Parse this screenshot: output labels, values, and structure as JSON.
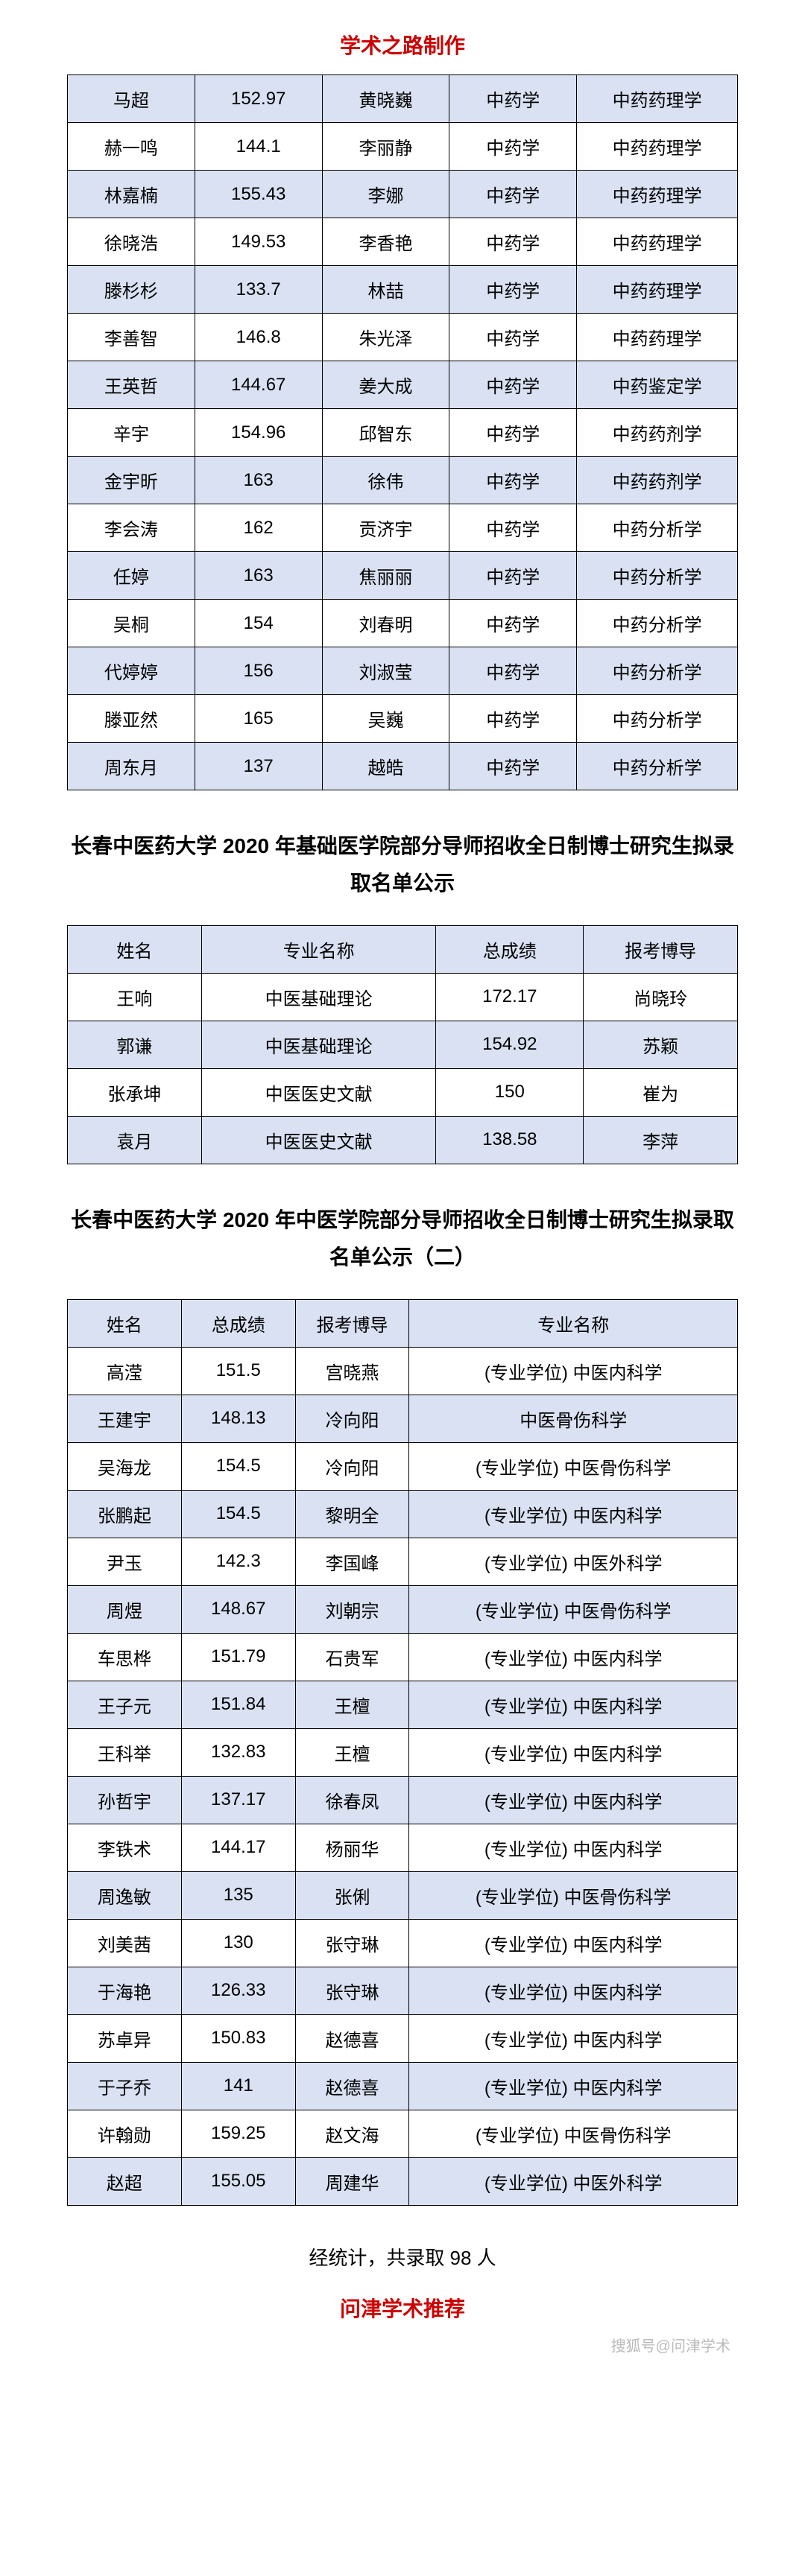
{
  "header_title": "学术之路制作",
  "table1": {
    "rows": [
      [
        "马超",
        "152.97",
        "黄晓巍",
        "中药学",
        "中药药理学"
      ],
      [
        "赫一鸣",
        "144.1",
        "李丽静",
        "中药学",
        "中药药理学"
      ],
      [
        "林嘉楠",
        "155.43",
        "李娜",
        "中药学",
        "中药药理学"
      ],
      [
        "徐晓浩",
        "149.53",
        "李香艳",
        "中药学",
        "中药药理学"
      ],
      [
        "滕杉杉",
        "133.7",
        "林喆",
        "中药学",
        "中药药理学"
      ],
      [
        "李善智",
        "146.8",
        "朱光泽",
        "中药学",
        "中药药理学"
      ],
      [
        "王英哲",
        "144.67",
        "姜大成",
        "中药学",
        "中药鉴定学"
      ],
      [
        "辛宇",
        "154.96",
        "邱智东",
        "中药学",
        "中药药剂学"
      ],
      [
        "金宇昕",
        "163",
        "徐伟",
        "中药学",
        "中药药剂学"
      ],
      [
        "李会涛",
        "162",
        "贡济宇",
        "中药学",
        "中药分析学"
      ],
      [
        "任婷",
        "163",
        "焦丽丽",
        "中药学",
        "中药分析学"
      ],
      [
        "吴桐",
        "154",
        "刘春明",
        "中药学",
        "中药分析学"
      ],
      [
        "代婷婷",
        "156",
        "刘淑莹",
        "中药学",
        "中药分析学"
      ],
      [
        "滕亚然",
        "165",
        "吴巍",
        "中药学",
        "中药分析学"
      ],
      [
        "周东月",
        "137",
        "越皓",
        "中药学",
        "中药分析学"
      ]
    ]
  },
  "section2_title": "长春中医药大学 2020 年基础医学院部分导师招收全日制博士研究生拟录取名单公示",
  "table2": {
    "headers": [
      "姓名",
      "专业名称",
      "总成绩",
      "报考博导"
    ],
    "rows": [
      [
        "王响",
        "中医基础理论",
        "172.17",
        "尚晓玲"
      ],
      [
        "郭谦",
        "中医基础理论",
        "154.92",
        "苏颖"
      ],
      [
        "张承坤",
        "中医医史文献",
        "150",
        "崔为"
      ],
      [
        "袁月",
        "中医医史文献",
        "138.58",
        "李萍"
      ]
    ]
  },
  "section3_title": "长春中医药大学 2020 年中医学院部分导师招收全日制博士研究生拟录取名单公示（二）",
  "table3": {
    "headers": [
      "姓名",
      "总成绩",
      "报考博导",
      "专业名称"
    ],
    "rows": [
      [
        "高滢",
        "151.5",
        "宫晓燕",
        "(专业学位) 中医内科学"
      ],
      [
        "王建宇",
        "148.13",
        "冷向阳",
        "中医骨伤科学"
      ],
      [
        "吴海龙",
        "154.5",
        "冷向阳",
        "(专业学位) 中医骨伤科学"
      ],
      [
        "张鹏起",
        "154.5",
        "黎明全",
        "(专业学位) 中医内科学"
      ],
      [
        "尹玉",
        "142.3",
        "李国峰",
        "(专业学位) 中医外科学"
      ],
      [
        "周煜",
        "148.67",
        "刘朝宗",
        "(专业学位) 中医骨伤科学"
      ],
      [
        "车思桦",
        "151.79",
        "石贵军",
        "(专业学位) 中医内科学"
      ],
      [
        "王子元",
        "151.84",
        "王檀",
        "(专业学位) 中医内科学"
      ],
      [
        "王科举",
        "132.83",
        "王檀",
        "(专业学位) 中医内科学"
      ],
      [
        "孙哲宇",
        "137.17",
        "徐春凤",
        "(专业学位) 中医内科学"
      ],
      [
        "李铁术",
        "144.17",
        "杨丽华",
        "(专业学位) 中医内科学"
      ],
      [
        "周逸敏",
        "135",
        "张俐",
        "(专业学位) 中医骨伤科学"
      ],
      [
        "刘美茜",
        "130",
        "张守琳",
        "(专业学位) 中医内科学"
      ],
      [
        "于海艳",
        "126.33",
        "张守琳",
        "(专业学位) 中医内科学"
      ],
      [
        "苏卓异",
        "150.83",
        "赵德喜",
        "(专业学位) 中医内科学"
      ],
      [
        "于子乔",
        "141",
        "赵德喜",
        "(专业学位) 中医内科学"
      ],
      [
        "许翰勋",
        "159.25",
        "赵文海",
        "(专业学位) 中医骨伤科学"
      ],
      [
        "赵超",
        "155.05",
        "周建华",
        "(专业学位) 中医外科学"
      ]
    ]
  },
  "stat_text": "经统计，共录取 98 人",
  "footer_title": "问津学术推荐",
  "watermark": "搜狐号@问津学术"
}
